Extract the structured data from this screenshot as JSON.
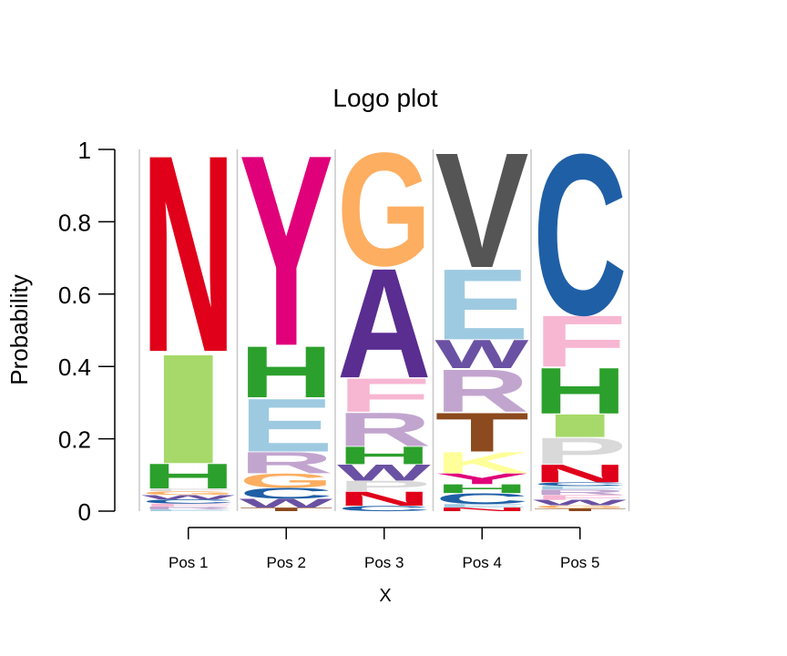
{
  "chart_data": {
    "type": "logo",
    "title": "Logo plot",
    "xlabel": "X",
    "ylabel": "Probability",
    "ylim": [
      0,
      1
    ],
    "y_ticks": [
      "0",
      "0.2",
      "0.4",
      "0.6",
      "0.8",
      "1"
    ],
    "categories": [
      "Pos 1",
      "Pos 2",
      "Pos 3",
      "Pos 4",
      "Pos 5"
    ],
    "positions": [
      {
        "name": "Pos 1",
        "stack": [
          {
            "letter": "E",
            "value": 0.005,
            "color": "#9ecae1"
          },
          {
            "letter": "R",
            "value": 0.008,
            "color": "#c2a5cf"
          },
          {
            "letter": "F",
            "value": 0.008,
            "color": "#f7b6d2"
          },
          {
            "letter": "C",
            "value": 0.012,
            "color": "#1f5fa6"
          },
          {
            "letter": "W",
            "value": 0.012,
            "color": "#6a51a3"
          },
          {
            "letter": "G",
            "value": 0.01,
            "color": "#fdae61"
          },
          {
            "letter": "P",
            "value": 0.008,
            "color": "#d9d9d9"
          },
          {
            "letter": "H",
            "value": 0.07,
            "color": "#2ca02c"
          },
          {
            "letter": "I",
            "value": 0.31,
            "color": "#a6d96a"
          },
          {
            "letter": "N",
            "value": 0.557,
            "color": "#e0001a"
          }
        ]
      },
      {
        "name": "Pos 2",
        "stack": [
          {
            "letter": "T",
            "value": 0.01,
            "color": "#8c4a1e"
          },
          {
            "letter": "W",
            "value": 0.025,
            "color": "#6a51a3"
          },
          {
            "letter": "C",
            "value": 0.03,
            "color": "#1f5fa6"
          },
          {
            "letter": "G",
            "value": 0.04,
            "color": "#fdae61"
          },
          {
            "letter": "R",
            "value": 0.06,
            "color": "#c2a5cf"
          },
          {
            "letter": "E",
            "value": 0.15,
            "color": "#9ecae1"
          },
          {
            "letter": "H",
            "value": 0.145,
            "color": "#2ca02c"
          },
          {
            "letter": "Y",
            "value": 0.54,
            "color": "#e0007a"
          }
        ]
      },
      {
        "name": "Pos 3",
        "stack": [
          {
            "letter": "C",
            "value": 0.015,
            "color": "#1f5fa6"
          },
          {
            "letter": "N",
            "value": 0.04,
            "color": "#e0001a"
          },
          {
            "letter": "P",
            "value": 0.03,
            "color": "#d9d9d9"
          },
          {
            "letter": "W",
            "value": 0.045,
            "color": "#6a51a3"
          },
          {
            "letter": "H",
            "value": 0.05,
            "color": "#2ca02c"
          },
          {
            "letter": "R",
            "value": 0.095,
            "color": "#c2a5cf"
          },
          {
            "letter": "F",
            "value": 0.095,
            "color": "#f7b6d2"
          },
          {
            "letter": "A",
            "value": 0.31,
            "color": "#5a2d91"
          },
          {
            "letter": "G",
            "value": 0.32,
            "color": "#fdae61"
          }
        ]
      },
      {
        "name": "Pos 4",
        "stack": [
          {
            "letter": "N",
            "value": 0.01,
            "color": "#e0001a"
          },
          {
            "letter": "E",
            "value": 0.01,
            "color": "#9ecae1"
          },
          {
            "letter": "C",
            "value": 0.03,
            "color": "#1f5fa6"
          },
          {
            "letter": "H",
            "value": 0.025,
            "color": "#2ca02c"
          },
          {
            "letter": "Y",
            "value": 0.03,
            "color": "#e0007a"
          },
          {
            "letter": "K",
            "value": 0.06,
            "color": "#ffff99"
          },
          {
            "letter": "T",
            "value": 0.11,
            "color": "#8c4a1e"
          },
          {
            "letter": "R",
            "value": 0.12,
            "color": "#c2a5cf"
          },
          {
            "letter": "W",
            "value": 0.08,
            "color": "#6a51a3"
          },
          {
            "letter": "E",
            "value": 0.2,
            "color": "#9ecae1"
          },
          {
            "letter": "V",
            "value": 0.325,
            "color": "#555555"
          }
        ]
      },
      {
        "name": "Pos 5",
        "stack": [
          {
            "letter": "T",
            "value": 0.008,
            "color": "#8c4a1e"
          },
          {
            "letter": "G",
            "value": 0.008,
            "color": "#fdae61"
          },
          {
            "letter": "W",
            "value": 0.015,
            "color": "#6a51a3"
          },
          {
            "letter": "F",
            "value": 0.014,
            "color": "#f7b6d2"
          },
          {
            "letter": "R",
            "value": 0.015,
            "color": "#c2a5cf"
          },
          {
            "letter": "E",
            "value": 0.01,
            "color": "#9ecae1"
          },
          {
            "letter": "C",
            "value": 0.01,
            "color": "#1f5fa6"
          },
          {
            "letter": "N",
            "value": 0.05,
            "color": "#e0001a"
          },
          {
            "letter": "P",
            "value": 0.075,
            "color": "#d9d9d9"
          },
          {
            "letter": "I",
            "value": 0.065,
            "color": "#a6d96a"
          },
          {
            "letter": "H",
            "value": 0.13,
            "color": "#2ca02c"
          },
          {
            "letter": "F",
            "value": 0.145,
            "color": "#f7b6d2"
          },
          {
            "letter": "C",
            "value": 0.455,
            "color": "#1f5fa6"
          }
        ]
      }
    ]
  }
}
